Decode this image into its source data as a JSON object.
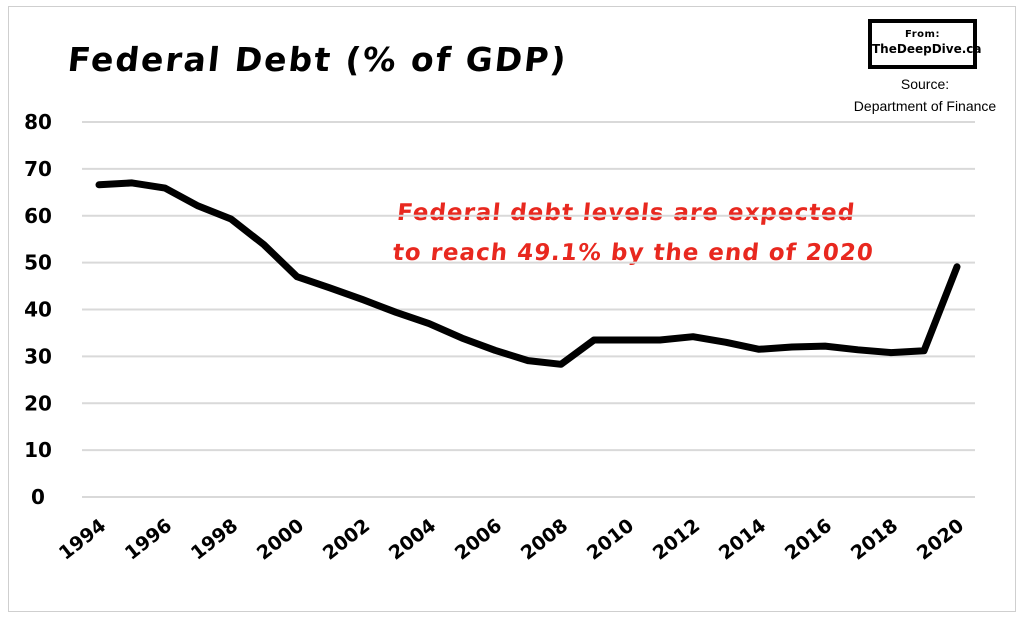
{
  "chart_data": {
    "type": "line",
    "title": "Federal Debt (% of GDP)",
    "source_label": "Source:",
    "source_name": "Department of Finance",
    "badge_from": "From:",
    "badge_site": "TheDeepDive.ca",
    "annotation_line1": "Federal debt levels are expected",
    "annotation_line2": "to reach 49.1% by the end of 2020",
    "ylim": [
      0,
      80
    ],
    "yticks": [
      "0",
      "10",
      "20",
      "30",
      "40",
      "50",
      "60",
      "70",
      "80"
    ],
    "xticks": [
      "1994",
      "1996",
      "1998",
      "2000",
      "2002",
      "2004",
      "2006",
      "2008",
      "2010",
      "2012",
      "2014",
      "2016",
      "2018",
      "2020"
    ],
    "grid": true,
    "series": [
      {
        "x": [
          1994,
          1995,
          1996,
          1997,
          1998,
          1999,
          2000,
          2001,
          2002,
          2003,
          2004,
          2005,
          2006,
          2007,
          2008,
          2009,
          2010,
          2011,
          2012,
          2013,
          2014,
          2015,
          2016,
          2017,
          2018,
          2019,
          2020
        ],
        "values": [
          66.6,
          67.0,
          65.9,
          62.1,
          59.3,
          53.8,
          47.0,
          44.6,
          42.1,
          39.4,
          37.0,
          33.9,
          31.3,
          29.1,
          28.3,
          33.5,
          33.5,
          33.5,
          34.2,
          33.0,
          31.5,
          32.0,
          32.2,
          31.4,
          30.8,
          31.2,
          49.1
        ]
      }
    ],
    "colors": {
      "line": "#000000",
      "grid": "#d9d9d9",
      "annotation": "#e8281f"
    }
  }
}
